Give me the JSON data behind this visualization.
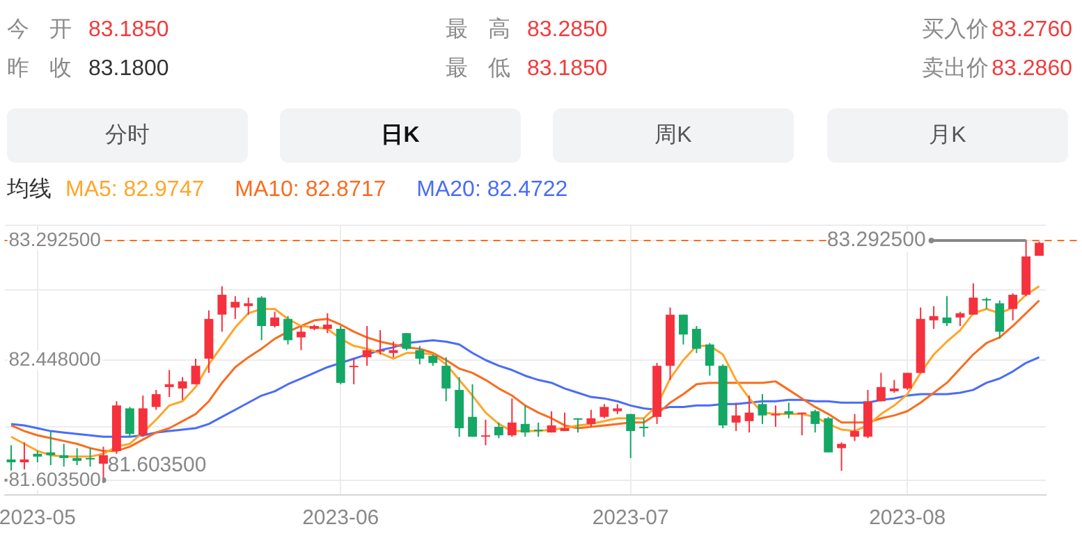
{
  "chart_data": {
    "type": "candlestick",
    "annotations": [
      "今 开 83.1850",
      "最 高 83.2850",
      "买入价83.2760",
      "昨 收 83.1800",
      "最 低 83.1850",
      "卖出价83.2860",
      "分时",
      "日K",
      "周K",
      "月K",
      {
        "text": "83.292500",
        "y": 83.2925
      },
      "81.603500"
    ],
    "legend_title": "均线",
    "legend": "top left",
    "grid": true,
    "marker": "none",
    "categories": [
      null,
      null,
      "2023-05",
      null,
      null,
      null,
      null,
      null,
      null,
      null,
      null,
      null,
      null,
      null,
      null,
      null,
      null,
      null,
      null,
      null,
      null,
      null,
      null,
      null,
      null,
      "2023-06",
      null,
      null,
      null,
      null,
      null,
      null,
      null,
      null,
      null,
      null,
      null,
      null,
      null,
      null,
      null,
      null,
      null,
      null,
      null,
      null,
      null,
      "2023-07",
      null,
      null,
      null,
      null,
      null,
      null,
      null,
      null,
      null,
      null,
      null,
      null,
      null,
      null,
      null,
      null,
      null,
      null,
      null,
      null,
      "2023-08",
      null,
      null,
      null,
      null,
      null,
      null,
      null,
      null,
      null,
      null
    ],
    "ylim": [
      81.5,
      83.4
    ],
    "yticks": [
      {
        "value": 81.5,
        "label": null
      },
      {
        "value": 81.6035,
        "label": "81.603500"
      },
      {
        "value": 81.98,
        "label": null
      },
      {
        "value": 82.448,
        "label": "82.448000"
      },
      {
        "value": 82.945,
        "label": null
      },
      {
        "value": 83.2925,
        "label": "83.292500"
      },
      {
        "value": 83.4,
        "label": null
      }
    ],
    "ref_lines": [
      {
        "axis": "y",
        "value": 83.2925,
        "color": "#fa6c1e",
        "line_style": "dashed"
      }
    ],
    "ohlc": [
      [
        81.75,
        81.85,
        81.66,
        81.73
      ],
      [
        81.73,
        81.87,
        81.68,
        81.75
      ],
      [
        81.79,
        81.81,
        81.73,
        81.77
      ],
      [
        81.8,
        81.95,
        81.71,
        81.78
      ],
      [
        81.78,
        81.86,
        81.7,
        81.76
      ],
      [
        81.76,
        81.83,
        81.71,
        81.74
      ],
      [
        81.76,
        81.83,
        81.7,
        81.75
      ],
      [
        81.72,
        81.84,
        81.6035,
        81.78
      ],
      [
        81.81,
        82.16,
        81.79,
        82.13
      ],
      [
        82.11,
        82.12,
        81.91,
        81.93
      ],
      [
        81.92,
        82.2,
        81.91,
        82.11
      ],
      [
        82.12,
        82.24,
        82.1,
        82.21
      ],
      [
        82.26,
        82.38,
        82.19,
        82.28
      ],
      [
        82.25,
        82.33,
        82.17,
        82.3
      ],
      [
        82.28,
        82.46,
        82.28,
        82.41
      ],
      [
        82.46,
        82.8,
        82.36,
        82.74
      ],
      [
        82.77,
        82.97,
        82.65,
        82.91
      ],
      [
        82.82,
        82.9,
        82.74,
        82.86
      ],
      [
        82.83,
        82.89,
        82.77,
        82.85
      ],
      [
        82.89,
        82.9,
        82.59,
        82.69
      ],
      [
        82.69,
        82.79,
        82.68,
        82.75
      ],
      [
        82.74,
        82.76,
        82.56,
        82.59
      ],
      [
        82.61,
        82.69,
        82.52,
        82.65
      ],
      [
        82.67,
        82.7,
        82.66,
        82.69
      ],
      [
        82.67,
        82.78,
        82.64,
        82.7
      ],
      [
        82.67,
        82.69,
        82.28,
        82.29
      ],
      [
        82.41,
        82.46,
        82.28,
        82.41
      ],
      [
        82.47,
        82.69,
        82.41,
        82.52
      ],
      [
        82.51,
        82.66,
        82.49,
        82.52
      ],
      [
        82.5,
        82.58,
        82.47,
        82.52
      ],
      [
        82.64,
        82.64,
        82.52,
        82.53
      ],
      [
        82.52,
        82.55,
        82.42,
        82.46
      ],
      [
        82.48,
        82.49,
        82.41,
        82.43
      ],
      [
        82.41,
        82.47,
        82.16,
        82.25
      ],
      [
        82.24,
        82.33,
        81.91,
        81.97
      ],
      [
        82.05,
        82.28,
        81.91,
        81.91
      ],
      [
        81.91,
        82.03,
        81.85,
        81.92
      ],
      [
        81.98,
        82.01,
        81.9,
        81.92
      ],
      [
        81.92,
        82.18,
        81.91,
        82.01
      ],
      [
        82.0,
        82.13,
        81.91,
        81.94
      ],
      [
        81.96,
        82.01,
        81.91,
        81.95
      ],
      [
        81.94,
        82.09,
        81.94,
        81.99
      ],
      [
        81.95,
        82.08,
        81.95,
        81.97
      ],
      [
        82.04,
        82.04,
        81.94,
        82.03
      ],
      [
        82.0,
        82.1,
        81.98,
        82.04
      ],
      [
        82.05,
        82.14,
        82.04,
        82.12
      ],
      [
        82.09,
        82.14,
        82.07,
        82.11
      ],
      [
        82.07,
        82.07,
        81.76,
        81.95
      ],
      [
        81.98,
        82.04,
        81.91,
        81.97
      ],
      [
        82.05,
        82.43,
        82.0,
        82.41
      ],
      [
        82.41,
        82.82,
        82.31,
        82.77
      ],
      [
        82.77,
        82.77,
        82.56,
        82.63
      ],
      [
        82.67,
        82.69,
        82.5,
        82.53
      ],
      [
        82.56,
        82.57,
        82.34,
        82.41
      ],
      [
        82.41,
        82.42,
        81.97,
        81.99
      ],
      [
        82.01,
        82.15,
        81.95,
        82.06
      ],
      [
        82.02,
        82.2,
        81.94,
        82.08
      ],
      [
        82.14,
        82.21,
        82.0,
        82.06
      ],
      [
        82.06,
        82.13,
        81.98,
        82.07
      ],
      [
        82.09,
        82.15,
        82.04,
        82.07
      ],
      [
        82.07,
        82.08,
        81.92,
        82.08
      ],
      [
        82.09,
        82.1,
        81.94,
        82.0
      ],
      [
        82.04,
        82.05,
        81.8,
        81.8
      ],
      [
        81.83,
        81.87,
        81.67,
        81.86
      ],
      [
        81.91,
        82.07,
        81.88,
        81.95
      ],
      [
        81.91,
        82.24,
        81.9,
        82.16
      ],
      [
        82.16,
        82.36,
        82.16,
        82.26
      ],
      [
        82.23,
        82.31,
        82.22,
        82.25
      ],
      [
        82.25,
        82.36,
        82.24,
        82.36
      ],
      [
        82.36,
        82.82,
        82.36,
        82.74
      ],
      [
        82.73,
        82.83,
        82.67,
        82.76
      ],
      [
        82.75,
        82.9,
        82.69,
        82.71
      ],
      [
        82.75,
        82.79,
        82.69,
        82.78
      ],
      [
        82.77,
        82.99,
        82.77,
        82.89
      ],
      [
        82.88,
        82.89,
        82.81,
        82.87
      ],
      [
        82.85,
        82.87,
        82.6,
        82.65
      ],
      [
        82.81,
        82.92,
        82.73,
        82.91
      ],
      [
        82.91,
        83.2925,
        82.9,
        83.18
      ],
      [
        83.185,
        83.285,
        83.185,
        83.276
      ]
    ],
    "series": [
      {
        "name": "MA5: 82.9747",
        "type": "line",
        "color": "#ffa528",
        "values": [
          81.91,
          81.86,
          81.81,
          81.78,
          81.77,
          81.77,
          81.77,
          81.79,
          81.84,
          81.86,
          81.94,
          82.03,
          82.13,
          82.16,
          82.26,
          82.42,
          82.55,
          82.68,
          82.78,
          82.81,
          82.81,
          82.74,
          82.69,
          82.68,
          82.67,
          82.6,
          82.55,
          82.53,
          82.5,
          82.46,
          82.5,
          82.5,
          82.49,
          82.42,
          82.31,
          82.2,
          82.08,
          82.0,
          81.95,
          81.95,
          81.95,
          81.96,
          81.97,
          81.99,
          82.0,
          82.02,
          82.04,
          82.04,
          82.04,
          82.13,
          82.32,
          82.45,
          82.55,
          82.55,
          82.49,
          82.31,
          82.18,
          82.08,
          82.07,
          82.07,
          82.07,
          82.05,
          82.0,
          81.96,
          81.95,
          81.99,
          82.07,
          82.13,
          82.21,
          82.36,
          82.49,
          82.58,
          82.66,
          82.78,
          82.81,
          82.78,
          82.82,
          82.91,
          82.97
        ]
      },
      {
        "name": "MA10: 82.8717",
        "type": "line",
        "color": "#fa6c1e",
        "values": [
          81.99,
          81.95,
          81.92,
          81.9,
          81.88,
          81.86,
          81.83,
          81.81,
          81.81,
          81.84,
          81.89,
          81.94,
          81.97,
          82.02,
          82.07,
          82.16,
          82.29,
          82.4,
          82.47,
          82.53,
          82.6,
          82.65,
          82.69,
          82.73,
          82.74,
          82.7,
          82.65,
          82.61,
          82.58,
          82.56,
          82.54,
          82.53,
          82.5,
          82.45,
          82.39,
          82.36,
          82.31,
          82.25,
          82.2,
          82.13,
          82.08,
          82.04,
          81.99,
          81.97,
          81.98,
          81.99,
          82.0,
          82.01,
          82.01,
          82.07,
          82.15,
          82.21,
          82.28,
          82.29,
          82.29,
          82.29,
          82.29,
          82.29,
          82.3,
          82.24,
          82.18,
          82.12,
          82.07,
          82.01,
          82.01,
          82.01,
          82.04,
          82.06,
          82.09,
          82.15,
          82.22,
          82.29,
          82.39,
          82.49,
          82.57,
          82.61,
          82.69,
          82.78,
          82.87
        ]
      },
      {
        "name": "MA20: 82.4722",
        "type": "line",
        "color": "#4a6cf7",
        "values": [
          82.0,
          81.99,
          81.97,
          81.95,
          81.94,
          81.93,
          81.92,
          81.91,
          81.91,
          81.91,
          81.92,
          81.94,
          81.95,
          81.96,
          81.97,
          82.0,
          82.05,
          82.1,
          82.15,
          82.2,
          82.23,
          82.28,
          82.32,
          82.36,
          82.4,
          82.43,
          82.46,
          82.49,
          82.52,
          82.54,
          82.57,
          82.58,
          82.59,
          82.58,
          82.56,
          82.5,
          82.45,
          82.41,
          82.38,
          82.34,
          82.31,
          82.29,
          82.25,
          82.22,
          82.19,
          82.18,
          82.16,
          82.13,
          82.11,
          82.1,
          82.12,
          82.12,
          82.13,
          82.13,
          82.14,
          82.14,
          82.15,
          82.16,
          82.16,
          82.17,
          82.17,
          82.16,
          82.16,
          82.15,
          82.15,
          82.15,
          82.17,
          82.18,
          82.2,
          82.21,
          82.21,
          82.21,
          82.22,
          82.24,
          82.29,
          82.32,
          82.37,
          82.43,
          82.47
        ]
      }
    ]
  }
}
